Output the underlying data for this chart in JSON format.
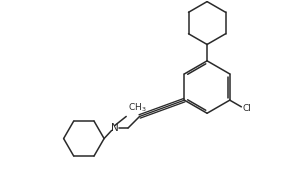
{
  "background_color": "#ffffff",
  "bond_color": "#2a2a2a",
  "text_color": "#2a2a2a",
  "figsize": [
    3.01,
    1.86
  ],
  "dpi": 100,
  "xlim": [
    0,
    10
  ],
  "ylim": [
    0,
    6.2
  ]
}
